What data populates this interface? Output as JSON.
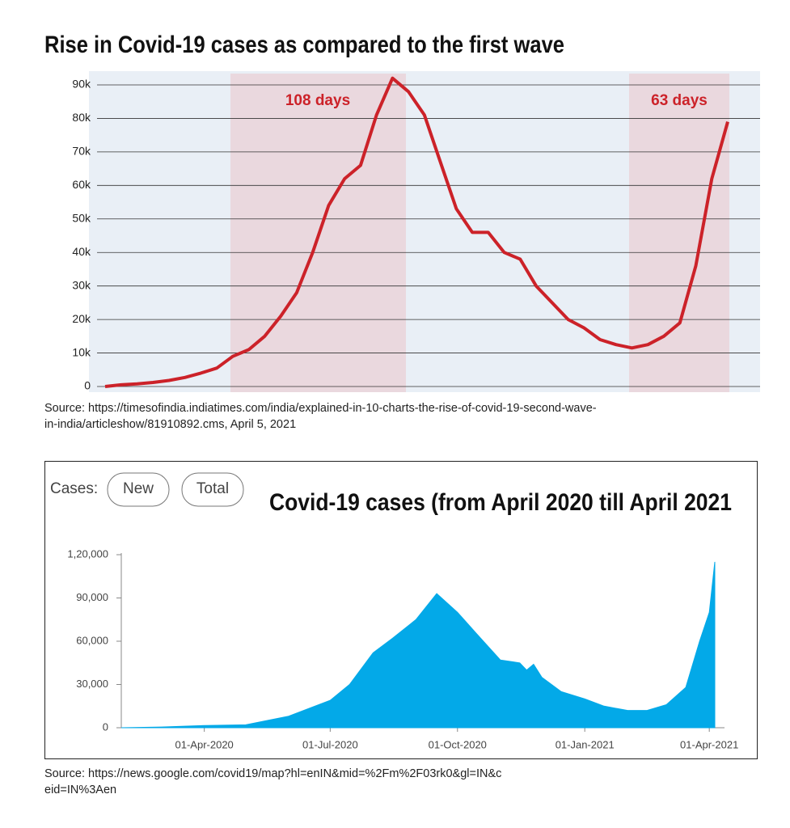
{
  "chart_data": [
    {
      "type": "line",
      "title": "Rise in Covid-19 cases as compared to the first wave",
      "annotations": [
        "108 days",
        "63 days"
      ],
      "values": [
        0,
        500,
        800,
        1200,
        1800,
        2700,
        4000,
        5500,
        9000,
        11000,
        15000,
        21000,
        28000,
        40000,
        54000,
        62000,
        66000,
        81000,
        92000,
        88000,
        81000,
        67000,
        53000,
        46000,
        46000,
        40000,
        38000,
        30000,
        25000,
        20000,
        17500,
        14000,
        12500,
        11500,
        12500,
        15000,
        19000,
        36000,
        62000,
        79000
      ],
      "color": "#cc2229",
      "ylim": [
        0,
        90000
      ],
      "yticks": [
        0,
        {
          "value": 10000,
          "label": "10k"
        },
        {
          "value": 20000,
          "label": "20k"
        },
        {
          "value": 30000,
          "label": "30k"
        },
        {
          "value": 40000,
          "label": "40k"
        },
        {
          "value": 50000,
          "label": "50k"
        },
        {
          "value": 60000,
          "label": "60k"
        },
        {
          "value": 70000,
          "label": "70k"
        },
        {
          "value": 80000,
          "label": "80k"
        },
        {
          "value": 90000,
          "label": "90k"
        }
      ],
      "grid": true,
      "source": "Source: https://timesofindia.indiatimes.com/india/explained-in-10-charts-the-rise-of-covid-19-second-wave-in-india/articleshow/81910892.cms, April 5, 2021"
    },
    {
      "type": "area",
      "title": "Covid-19 cases (from April 2020 till April 2021",
      "controls": {
        "label": "Cases:",
        "buttons": [
          "New",
          "Total"
        ]
      },
      "x": [
        "2020-02-01",
        "2020-03-01",
        "2020-04-01",
        "2020-05-01",
        "2020-06-01",
        "2020-07-01",
        "2020-07-15",
        "2020-08-01",
        "2020-08-15",
        "2020-09-01",
        "2020-09-16",
        "2020-10-01",
        "2020-10-15",
        "2020-11-01",
        "2020-11-15",
        "2020-11-20",
        "2020-11-25",
        "2020-12-01",
        "2020-12-15",
        "2021-01-01",
        "2021-01-15",
        "2021-02-01",
        "2021-02-15",
        "2021-03-01",
        "2021-03-15",
        "2021-03-25",
        "2021-04-01",
        "2021-04-05"
      ],
      "values": [
        0,
        500,
        1500,
        2000,
        8000,
        19000,
        30000,
        52000,
        62000,
        75000,
        93000,
        80000,
        65000,
        47000,
        45000,
        40000,
        44000,
        35000,
        25000,
        20000,
        15000,
        12000,
        12000,
        16000,
        28000,
        60000,
        80000,
        115000
      ],
      "color": "#03a9e8",
      "xlim": [
        "2020-02-01",
        "2021-04-12"
      ],
      "xticks": [
        {
          "value": "2020-04-01",
          "label": "01-Apr-2020"
        },
        {
          "value": "2020-07-01",
          "label": "01-Jul-2020"
        },
        {
          "value": "2020-10-01",
          "label": "01-Oct-2020"
        },
        {
          "value": "2021-01-01",
          "label": "01-Jan-2021"
        },
        {
          "value": "2021-04-01",
          "label": "01-Apr-2021"
        }
      ],
      "ylim": [
        0,
        120000
      ],
      "yticks": [
        0,
        {
          "value": 30000,
          "label": "30,000"
        },
        {
          "value": 60000,
          "label": "60,000"
        },
        {
          "value": 90000,
          "label": "90,000"
        },
        {
          "value": 120000,
          "label": "1,20,000"
        }
      ],
      "grid": false,
      "source": "Source: https://news.google.com/covid19/map?hl=enIN&mid=%2Fm%2F03rk0&gl=IN&ceid=IN%3Aen"
    }
  ]
}
